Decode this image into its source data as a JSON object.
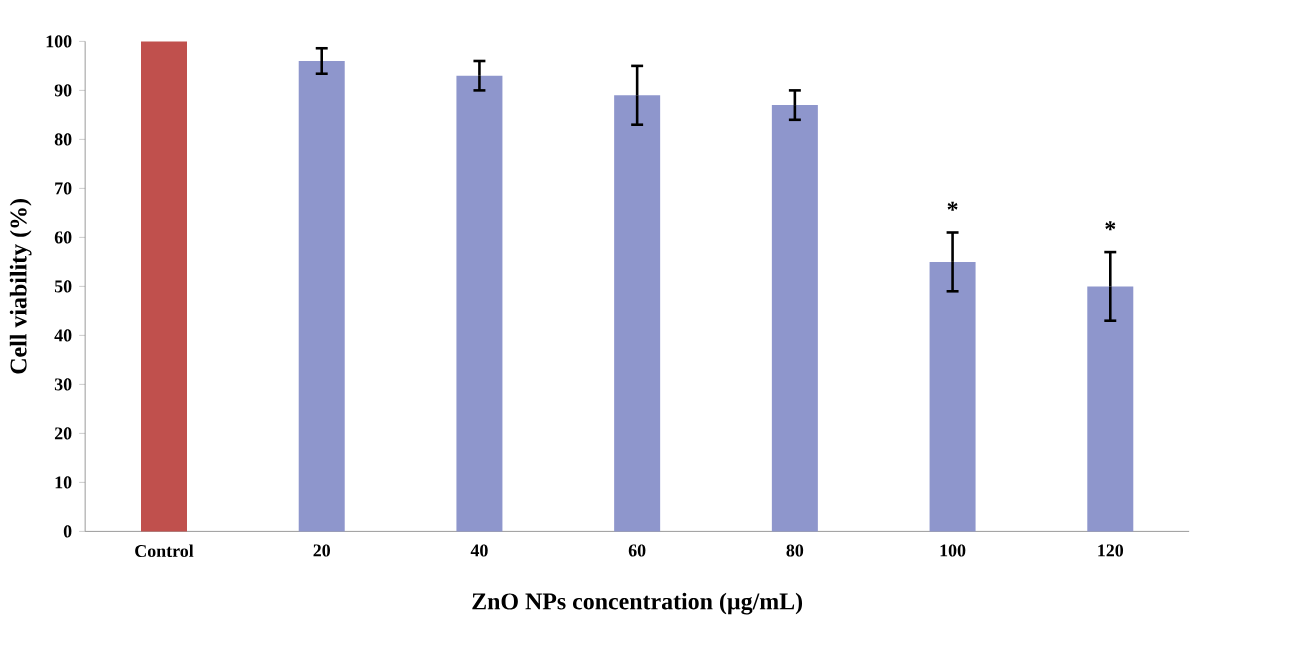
{
  "chart_data": {
    "type": "bar",
    "xlabel": "ZnO NPs concentration (µg/mL)",
    "ylabel": "Cell viability (%)",
    "categories": [
      "Control",
      "20",
      "40",
      "60",
      "80",
      "100",
      "120"
    ],
    "values": [
      100,
      96,
      93,
      89,
      87,
      55,
      50
    ],
    "errors": [
      null,
      2.6,
      3,
      6,
      3,
      6,
      7
    ],
    "colors": [
      "#c0504d",
      "#8e96cc",
      "#8e96cc",
      "#8e96cc",
      "#8e96cc",
      "#8e96cc",
      "#8e96cc"
    ],
    "ylim": [
      0,
      100
    ],
    "yticks": [
      0,
      10,
      20,
      30,
      40,
      50,
      60,
      70,
      80,
      90,
      100
    ],
    "grid": false,
    "annotations": [
      {
        "text": "*",
        "x": "100",
        "y": 55
      },
      {
        "text": "*",
        "x": "120",
        "y": 50
      }
    ]
  }
}
